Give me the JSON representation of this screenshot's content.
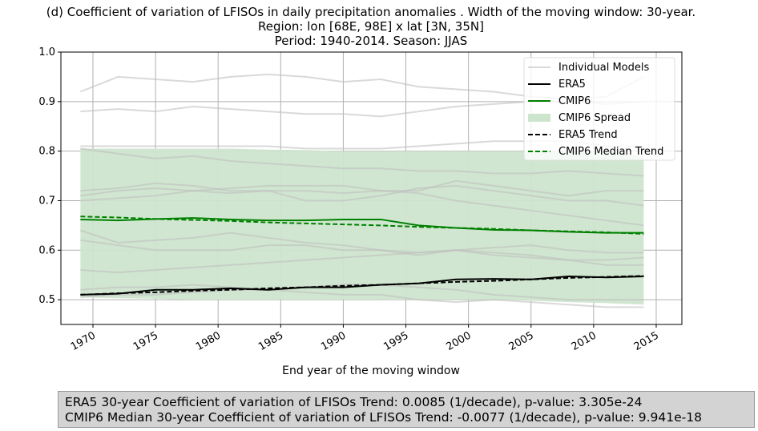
{
  "chart_data": {
    "type": "line",
    "title": [
      "(d) Coefficient of variation of LFISOs in daily precipitation anomalies . Width of the moving window: 30-year.",
      "Region: lon [68E, 98E] x lat [3N, 35N]",
      "Period: 1940-2014. Season: JJAS"
    ],
    "x_label": "End year of the moving window",
    "x": [
      1969,
      1972,
      1975,
      1978,
      1981,
      1984,
      1987,
      1990,
      1993,
      1996,
      1999,
      2002,
      2005,
      2008,
      2011,
      2014
    ],
    "xlim": [
      1967.44,
      2017.05
    ],
    "xticks": [
      1970,
      1975,
      1980,
      1985,
      1990,
      1995,
      2000,
      2005,
      2010,
      2015
    ],
    "ylim": [
      0.45,
      1.0
    ],
    "yticks": [
      0.5,
      0.6,
      0.7,
      0.8,
      0.9,
      {
        "value": 1,
        "label": "1.0"
      }
    ],
    "grid": true,
    "legend": "upper right",
    "models": {
      "name": "Individual Models",
      "color": "#bfbfbf",
      "runs": [
        [
          0.92,
          0.95,
          0.945,
          0.94,
          0.95,
          0.955,
          0.95,
          0.94,
          0.945,
          0.93,
          0.925,
          0.92,
          0.91,
          0.905,
          0.91,
          0.95
        ],
        [
          0.88,
          0.885,
          0.88,
          0.89,
          0.885,
          0.88,
          0.875,
          0.875,
          0.87,
          0.88,
          0.89,
          0.895,
          0.9,
          0.9,
          0.895,
          0.9
        ],
        [
          0.81,
          0.81,
          0.81,
          0.81,
          0.81,
          0.81,
          0.805,
          0.805,
          0.805,
          0.81,
          0.815,
          0.82,
          0.82,
          0.82,
          0.81,
          0.81
        ],
        [
          0.805,
          0.795,
          0.785,
          0.79,
          0.78,
          0.775,
          0.77,
          0.765,
          0.765,
          0.76,
          0.76,
          0.755,
          0.755,
          0.76,
          0.755,
          0.75
        ],
        [
          0.72,
          0.725,
          0.735,
          0.73,
          0.72,
          0.72,
          0.72,
          0.715,
          0.72,
          0.72,
          0.74,
          0.73,
          0.72,
          0.71,
          0.72,
          0.72
        ],
        [
          0.71,
          0.72,
          0.725,
          0.72,
          0.715,
          0.72,
          0.7,
          0.7,
          0.71,
          0.725,
          0.73,
          0.72,
          0.71,
          0.7,
          0.7,
          0.69
        ],
        [
          0.64,
          0.615,
          0.62,
          0.625,
          0.635,
          0.625,
          0.615,
          0.61,
          0.6,
          0.595,
          0.6,
          0.595,
          0.59,
          0.58,
          0.58,
          0.585
        ],
        [
          0.56,
          0.555,
          0.56,
          0.565,
          0.57,
          0.575,
          0.58,
          0.585,
          0.59,
          0.595,
          0.6,
          0.605,
          0.61,
          0.6,
          0.595,
          0.595
        ],
        [
          0.52,
          0.525,
          0.525,
          0.53,
          0.525,
          0.52,
          0.515,
          0.51,
          0.51,
          0.5,
          0.495,
          0.5,
          0.495,
          0.49,
          0.485,
          0.485
        ],
        [
          0.505,
          0.51,
          0.51,
          0.515,
          0.52,
          0.52,
          0.525,
          0.53,
          0.53,
          0.525,
          0.52,
          0.51,
          0.505,
          0.5,
          0.5,
          0.5
        ],
        [
          0.62,
          0.61,
          0.6,
          0.6,
          0.6,
          0.61,
          0.61,
          0.6,
          0.6,
          0.59,
          0.6,
          0.59,
          0.585,
          0.58,
          0.57,
          0.57
        ],
        [
          0.7,
          0.705,
          0.71,
          0.72,
          0.725,
          0.73,
          0.73,
          0.73,
          0.72,
          0.715,
          0.7,
          0.69,
          0.68,
          0.67,
          0.66,
          0.65
        ]
      ]
    },
    "spread": {
      "name": "CMIP6 Spread",
      "color": "#cde5cd",
      "upper": [
        0.805,
        0.805,
        0.805,
        0.805,
        0.805,
        0.803,
        0.802,
        0.8,
        0.8,
        0.8,
        0.8,
        0.8,
        0.8,
        0.8,
        0.8,
        0.79
      ],
      "lower": [
        0.505,
        0.503,
        0.502,
        0.5,
        0.5,
        0.5,
        0.5,
        0.5,
        0.5,
        0.5,
        0.5,
        0.5,
        0.498,
        0.495,
        0.493,
        0.49
      ]
    },
    "series": [
      {
        "name": "ERA5",
        "color": "#000000",
        "dash": false,
        "values": [
          0.51,
          0.512,
          0.52,
          0.52,
          0.523,
          0.52,
          0.525,
          0.525,
          0.53,
          0.533,
          0.541,
          0.542,
          0.541,
          0.547,
          0.545,
          0.547
        ]
      },
      {
        "name": "CMIP6",
        "color": "#008000",
        "dash": false,
        "values": [
          0.662,
          0.66,
          0.663,
          0.665,
          0.662,
          0.66,
          0.66,
          0.662,
          0.662,
          0.65,
          0.645,
          0.641,
          0.64,
          0.637,
          0.635,
          0.635
        ]
      },
      {
        "name": "ERA5 Trend",
        "color": "#000000",
        "dash": true,
        "values": [
          0.51,
          0.513,
          0.515,
          0.518,
          0.52,
          0.523,
          0.525,
          0.528,
          0.53,
          0.533,
          0.536,
          0.538,
          0.541,
          0.544,
          0.546,
          0.548
        ]
      },
      {
        "name": "CMIP6 Median Trend",
        "color": "#008000",
        "dash": true,
        "values": [
          0.668,
          0.666,
          0.663,
          0.661,
          0.659,
          0.656,
          0.654,
          0.652,
          0.65,
          0.647,
          0.645,
          0.643,
          0.64,
          0.638,
          0.636,
          0.633
        ]
      }
    ],
    "annotation": [
      "ERA5 30-year Coefficient of variation of LFISOs Trend: 0.0085 (1/decade), p-value: 3.305e-24",
      "CMIP6 Median 30-year Coefficient of variation of LFISOs Trend: -0.0077 (1/decade), p-value: 9.941e-18"
    ]
  }
}
